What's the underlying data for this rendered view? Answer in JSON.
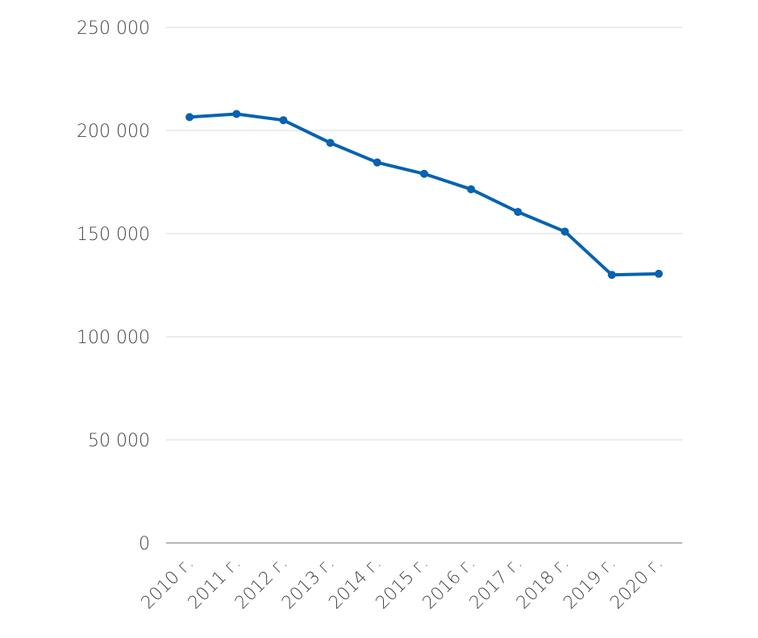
{
  "chart_data": {
    "type": "line",
    "title": "",
    "xlabel": "",
    "ylabel": "",
    "categories": [
      "2010 г.",
      "2011 г.",
      "2012 г.",
      "2013 г.",
      "2014 г.",
      "2015 г.",
      "2016 г.",
      "2017 г.",
      "2018 г.",
      "2019 г.",
      "2020 г."
    ],
    "series": [
      {
        "values": [
          206500,
          208000,
          205000,
          194000,
          184500,
          179000,
          171500,
          160500,
          151000,
          130000,
          130500
        ],
        "color": "#0563b0"
      }
    ],
    "ylim": [
      0,
      250000
    ],
    "y_ticks": [
      0,
      50000,
      100000,
      150000,
      200000,
      250000
    ],
    "y_tick_labels": [
      "0",
      "50 000",
      "100 000",
      "150 000",
      "200 000",
      "250 000"
    ],
    "grid": true,
    "legend": "none"
  }
}
